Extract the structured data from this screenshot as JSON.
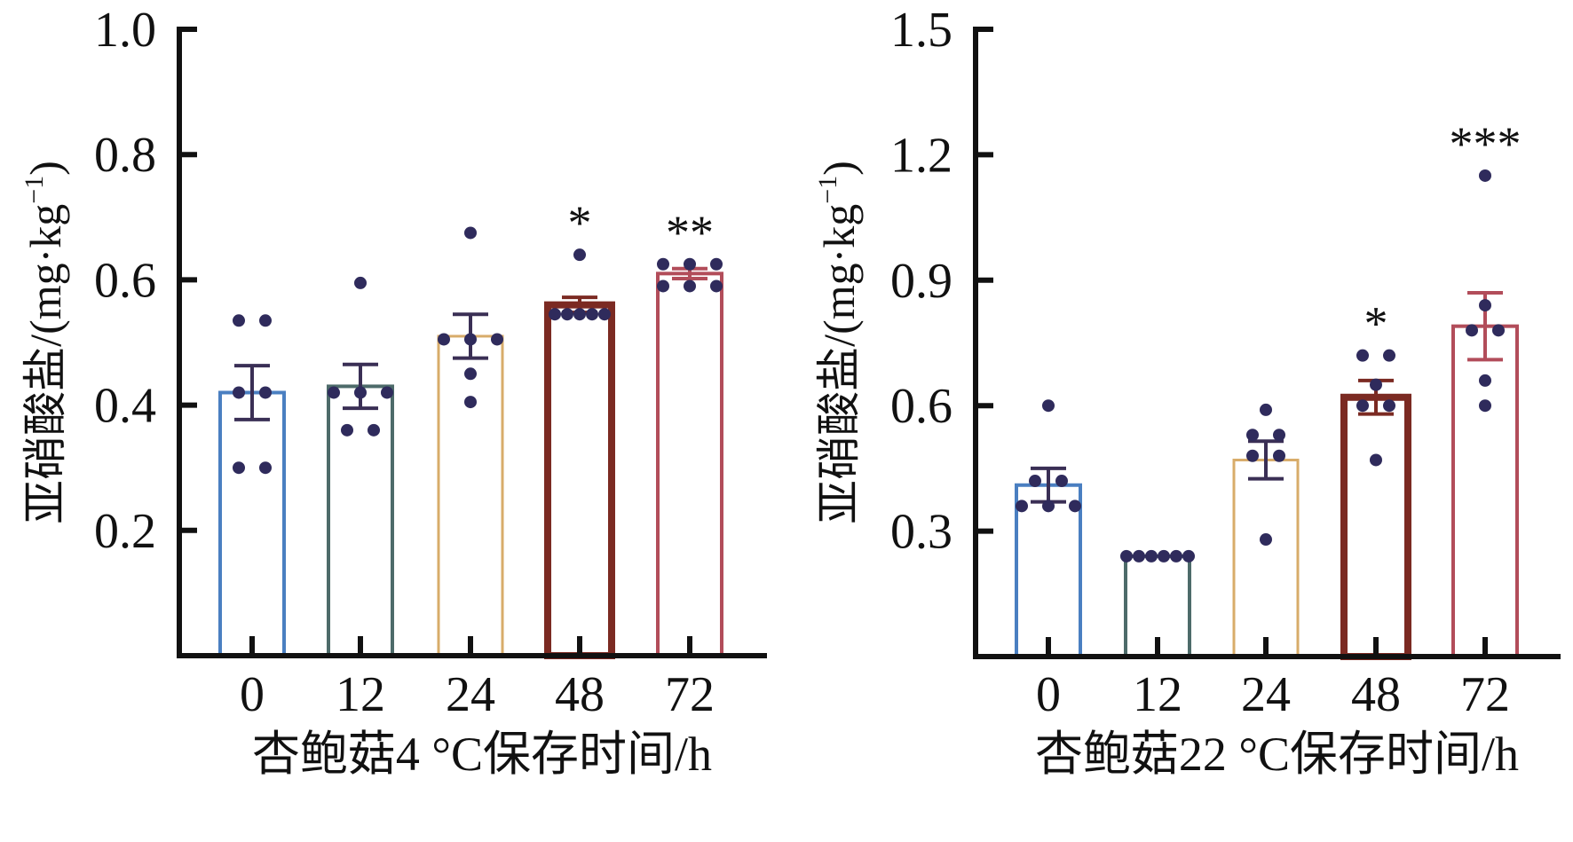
{
  "chart_data": [
    {
      "type": "bar",
      "title": "",
      "xlabel": "杏鲍菇4 °C保存时间/h",
      "ylabel": "亚硝酸盐/(mg·kg",
      "ylabel_sup": "−1",
      "ylabel_close": ")",
      "ylim": [
        0,
        1.0
      ],
      "yticks": [
        "0.2",
        "0.4",
        "0.6",
        "0.8",
        "1.0"
      ],
      "ytick_values": [
        0.2,
        0.4,
        0.6,
        0.8,
        1.0
      ],
      "categories": [
        "0",
        "12",
        "24",
        "48",
        "72"
      ],
      "values": [
        0.42,
        0.43,
        0.51,
        0.56,
        0.61
      ],
      "errors": [
        0.043,
        0.035,
        0.035,
        0.012,
        0.008
      ],
      "significance": [
        "",
        "",
        "",
        "*",
        "**"
      ],
      "points": [
        [
          0.535,
          0.535,
          0.42,
          0.42,
          0.3,
          0.3
        ],
        [
          0.595,
          0.42,
          0.42,
          0.42,
          0.36,
          0.36
        ],
        [
          0.675,
          0.505,
          0.505,
          0.505,
          0.45,
          0.405
        ],
        [
          0.64,
          0.545,
          0.545,
          0.545,
          0.545,
          0.545
        ],
        [
          0.625,
          0.625,
          0.625,
          0.59,
          0.59,
          0.59
        ]
      ],
      "bar_colors": [
        "#4a7fc1",
        "#4d6b6a",
        "#d8ac6a",
        "#7b2a22",
        "#b24d5a"
      ],
      "point_color": "#2f2b5c",
      "grid": false,
      "legend": "none"
    },
    {
      "type": "bar",
      "title": "",
      "xlabel": "杏鲍菇22 °C保存时间/h",
      "ylabel": "亚硝酸盐/(mg·kg",
      "ylabel_sup": "−1",
      "ylabel_close": ")",
      "ylim": [
        0,
        1.5
      ],
      "yticks": [
        "0.3",
        "0.6",
        "0.9",
        "1.2",
        "1.5"
      ],
      "ytick_values": [
        0.3,
        0.6,
        0.9,
        1.2,
        1.5
      ],
      "categories": [
        "0",
        "12",
        "24",
        "48",
        "72"
      ],
      "values": [
        0.41,
        0.24,
        0.47,
        0.62,
        0.79
      ],
      "errors": [
        0.04,
        0.0,
        0.045,
        0.04,
        0.08
      ],
      "significance": [
        "",
        "",
        "",
        "*",
        "***"
      ],
      "points": [
        [
          0.6,
          0.42,
          0.42,
          0.36,
          0.36,
          0.36
        ],
        [
          0.24,
          0.24,
          0.24,
          0.24,
          0.24,
          0.24
        ],
        [
          0.59,
          0.53,
          0.53,
          0.48,
          0.48,
          0.28
        ],
        [
          0.72,
          0.72,
          0.65,
          0.6,
          0.6,
          0.47
        ],
        [
          1.15,
          0.84,
          0.78,
          0.78,
          0.66,
          0.6
        ]
      ],
      "bar_colors": [
        "#4a7fc1",
        "#4d6b6a",
        "#d8ac6a",
        "#7b2a22",
        "#b24d5a"
      ],
      "point_color": "#2f2b5c",
      "grid": false,
      "legend": "none"
    }
  ]
}
